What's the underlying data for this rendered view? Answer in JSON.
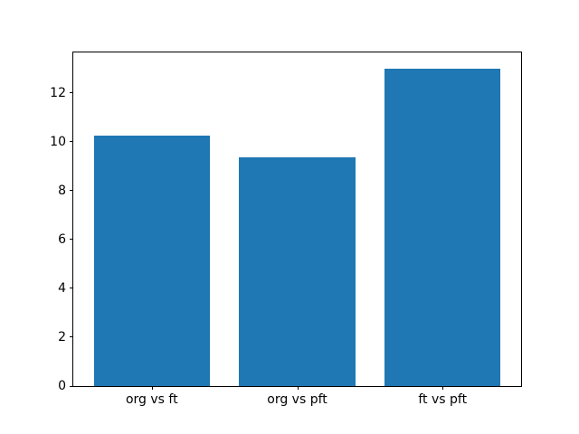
{
  "chart_data": {
    "type": "bar",
    "title": "",
    "xlabel": "",
    "ylabel": "",
    "categories": [
      "org vs ft",
      "org vs pft",
      "ft vs pft"
    ],
    "values": [
      10.25,
      9.35,
      13.0
    ],
    "yticks": [
      0,
      2,
      4,
      6,
      8,
      10,
      12
    ],
    "ylim": [
      0,
      13.65
    ],
    "bar_color": "#1f77b4",
    "bar_width_fraction": 0.8,
    "x_edge_margin": 0.54,
    "grid": false,
    "legend_position": "none",
    "background_color": "#ffffff",
    "axes_edge_color": "#000000",
    "tick_color": "#000000"
  }
}
